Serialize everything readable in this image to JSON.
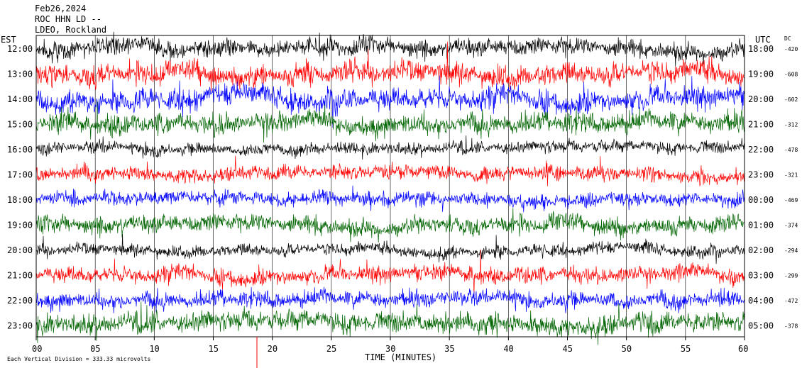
{
  "header": {
    "date": "Feb26,2024",
    "station": "ROC HHN LD --",
    "network": "LDEO, Rockland"
  },
  "chart_data": {
    "type": "line",
    "title": "",
    "left_axis_label": "EST",
    "right_axis_label": "UTC",
    "dc_label": "DC",
    "xlabel": "TIME (MINUTES)",
    "xlim": [
      0,
      60
    ],
    "x_ticks": [
      "00",
      "05",
      "10",
      "15",
      "20",
      "25",
      "30",
      "35",
      "40",
      "45",
      "50",
      "55",
      "60"
    ],
    "grid": true,
    "scale_note": "Each Vertical Division =  333.33 microvolts",
    "rows": [
      {
        "est": "12:00",
        "utc": "18:00",
        "dc": "-420",
        "color": "#000000",
        "amp": 0.45
      },
      {
        "est": "13:00",
        "utc": "19:00",
        "dc": "-608",
        "color": "#ff0000",
        "amp": 0.55
      },
      {
        "est": "14:00",
        "utc": "20:00",
        "dc": "-602",
        "color": "#0000ff",
        "amp": 0.55
      },
      {
        "est": "15:00",
        "utc": "21:00",
        "dc": "-312",
        "color": "#006400",
        "amp": 0.5
      },
      {
        "est": "16:00",
        "utc": "22:00",
        "dc": "-478",
        "color": "#000000",
        "amp": 0.3
      },
      {
        "est": "17:00",
        "utc": "23:00",
        "dc": "-321",
        "color": "#ff0000",
        "amp": 0.35
      },
      {
        "est": "18:00",
        "utc": "00:00",
        "dc": "-469",
        "color": "#0000ff",
        "amp": 0.35
      },
      {
        "est": "19:00",
        "utc": "01:00",
        "dc": "-374",
        "color": "#006400",
        "amp": 0.45
      },
      {
        "est": "20:00",
        "utc": "02:00",
        "dc": "-294",
        "color": "#000000",
        "amp": 0.3
      },
      {
        "est": "21:00",
        "utc": "03:00",
        "dc": "-299",
        "color": "#ff0000",
        "amp": 0.4
      },
      {
        "est": "22:00",
        "utc": "04:00",
        "dc": "-472",
        "color": "#0000ff",
        "amp": 0.4
      },
      {
        "est": "23:00",
        "utc": "05:00",
        "dc": "-378",
        "color": "#006400",
        "amp": 0.5
      }
    ]
  }
}
